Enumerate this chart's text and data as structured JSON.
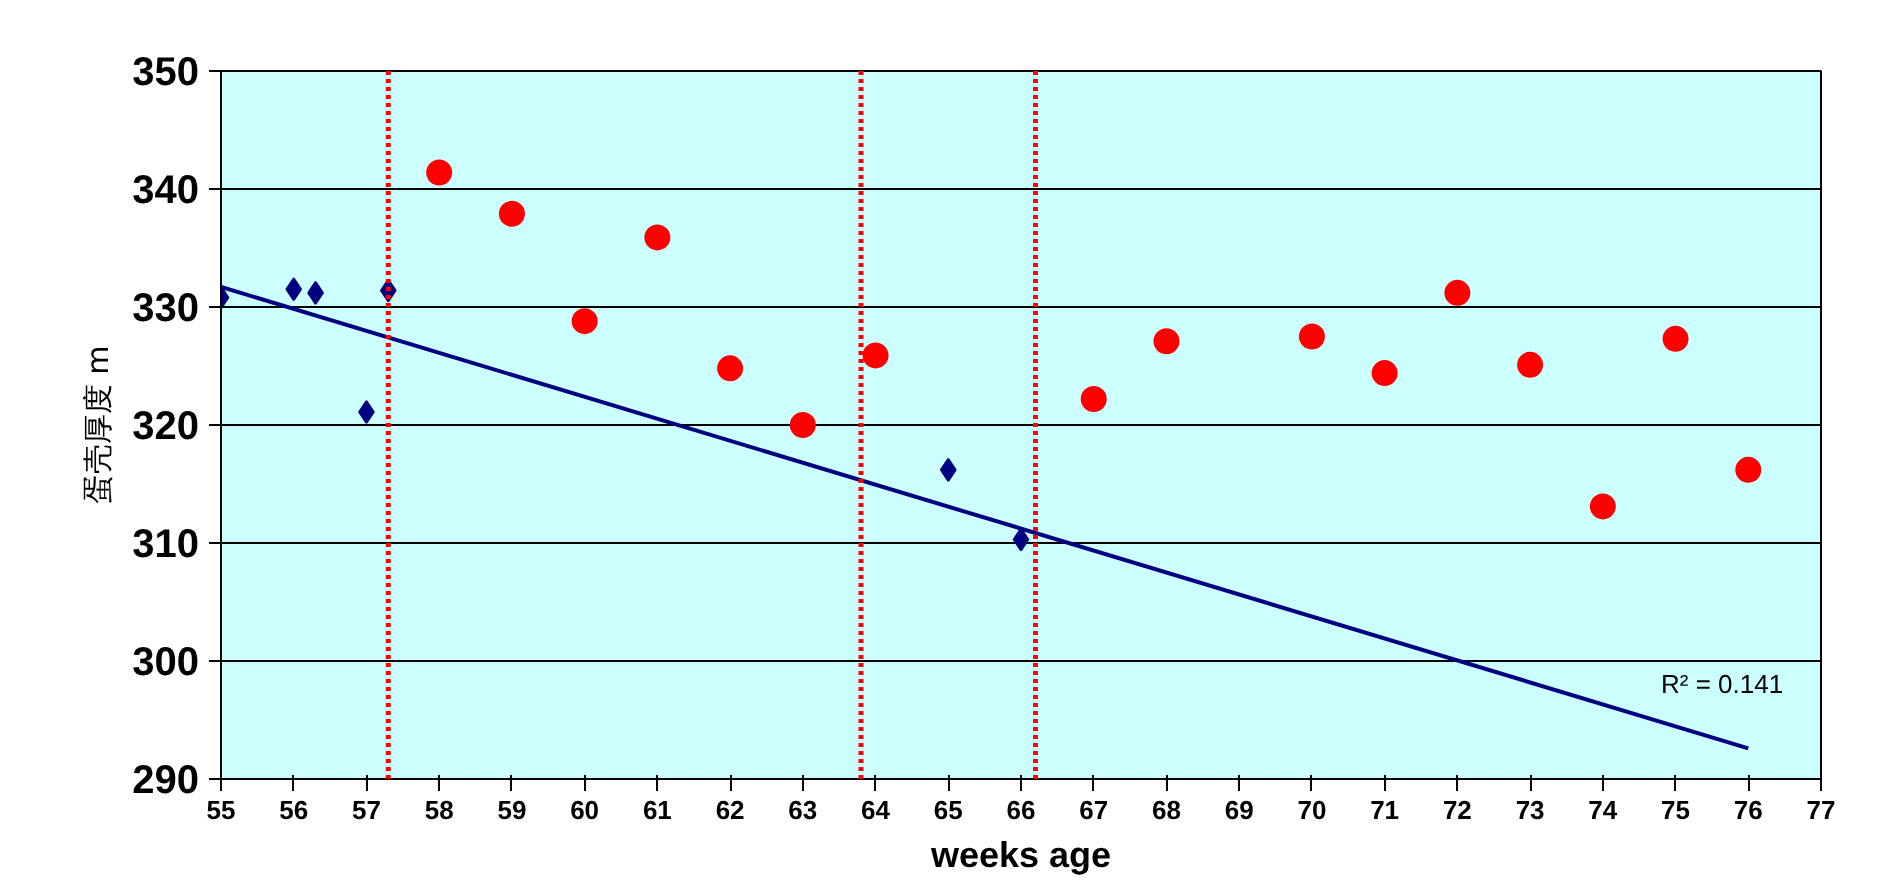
{
  "chart_data": {
    "type": "scatter",
    "xlabel": "weeks age",
    "ylabel": "蛋壳厚度 m",
    "xlim": [
      55,
      77
    ],
    "xticks": [
      55,
      56,
      57,
      58,
      59,
      60,
      61,
      62,
      63,
      64,
      65,
      66,
      67,
      68,
      69,
      70,
      71,
      72,
      73,
      74,
      75,
      76,
      77
    ],
    "ylim": [
      290,
      350
    ],
    "yticks": [
      290,
      300,
      310,
      320,
      330,
      340,
      350
    ],
    "grid": "y",
    "series": [
      {
        "marker": "diamond",
        "color": "#000080",
        "x": [
          55,
          56,
          56.3,
          57,
          57.3,
          65,
          66
        ],
        "values": [
          330.8,
          331.5,
          331.2,
          321.1,
          331.4,
          316.2,
          310.3
        ]
      },
      {
        "marker": "circle",
        "color": "#ff0000",
        "x": [
          58,
          59,
          60,
          61,
          62,
          63,
          64,
          67,
          68,
          70,
          71,
          72,
          73,
          74,
          75,
          76
        ],
        "values": [
          341.4,
          337.9,
          328.8,
          335.9,
          324.8,
          320.0,
          325.9,
          322.2,
          327.1,
          327.5,
          324.4,
          331.2,
          325.1,
          313.1,
          327.3,
          316.2
        ]
      },
      {
        "type": "line",
        "color": "#000080",
        "x": [
          55,
          76
        ],
        "values": [
          331.7,
          292.6
        ]
      }
    ],
    "ref_lines": [
      {
        "axis": "x",
        "value": 57.3,
        "color": "#ff0000",
        "line_style": "dotted"
      },
      {
        "axis": "x",
        "value": 63.8,
        "color": "#ff0000",
        "line_style": "dotted"
      },
      {
        "axis": "x",
        "value": 66.2,
        "color": "#ff0000",
        "line_style": "dotted"
      }
    ],
    "annotations": [
      "R² = 0.141"
    ]
  }
}
